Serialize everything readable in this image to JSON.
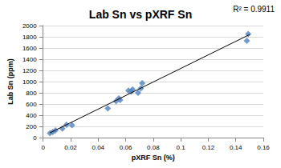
{
  "chart_data": {
    "type": "scatter",
    "title": "Lab Sn vs pXRF Sn",
    "x_label": "pXRF Sn (%)",
    "y_label": "Lab Sn (ppm)",
    "annotation": "R² = 0.9911",
    "series": [
      {
        "type": "scatter",
        "color": "#4f81bd",
        "marker": "diamond",
        "x": [
          0.005,
          0.007,
          0.009,
          0.014,
          0.017,
          0.021,
          0.047,
          0.053,
          0.055,
          0.056,
          0.062,
          0.064,
          0.065,
          0.069,
          0.071,
          0.072,
          0.148,
          0.149
        ],
        "values": [
          80,
          100,
          130,
          160,
          230,
          220,
          520,
          650,
          700,
          670,
          840,
          820,
          860,
          800,
          880,
          970,
          1730,
          1850
        ]
      },
      {
        "type": "line",
        "color": "#000000",
        "line_style": "solid",
        "x": [
          0.005,
          0.15
        ],
        "values": [
          85,
          1840
        ]
      }
    ],
    "xlim": [
      0,
      0.16
    ],
    "xticks": [
      0,
      0.02,
      0.04,
      0.06,
      0.08,
      0.1,
      0.12,
      0.14,
      0.16
    ],
    "ylim": [
      0,
      2000
    ],
    "yticks": [
      0,
      200,
      400,
      600,
      800,
      1000,
      1200,
      1400,
      1600,
      1800,
      2000
    ],
    "grid": true
  }
}
